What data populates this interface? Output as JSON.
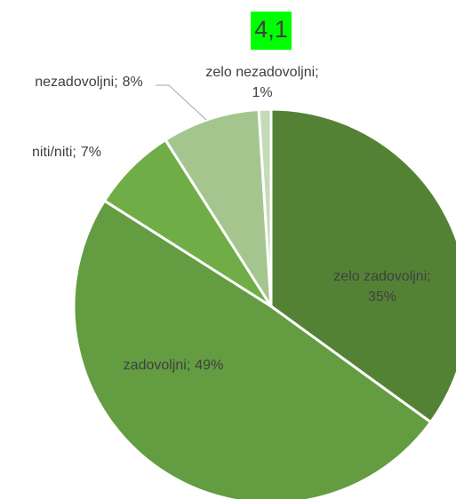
{
  "chart_data": {
    "type": "pie",
    "annotation": "4,1",
    "categories": [
      "zelo zadovoljni;",
      "zadovoljni;",
      "niti/niti;",
      "nezadovoljni;",
      "zelo nezadovoljni;"
    ],
    "values": [
      35,
      49,
      7,
      8,
      1
    ],
    "value_labels": [
      "35%",
      "49%",
      "7%",
      "8%",
      "1%"
    ],
    "colors": [
      "#548235",
      "#639c41",
      "#70ad47",
      "#a4c68e",
      "#c5dbb7"
    ]
  }
}
